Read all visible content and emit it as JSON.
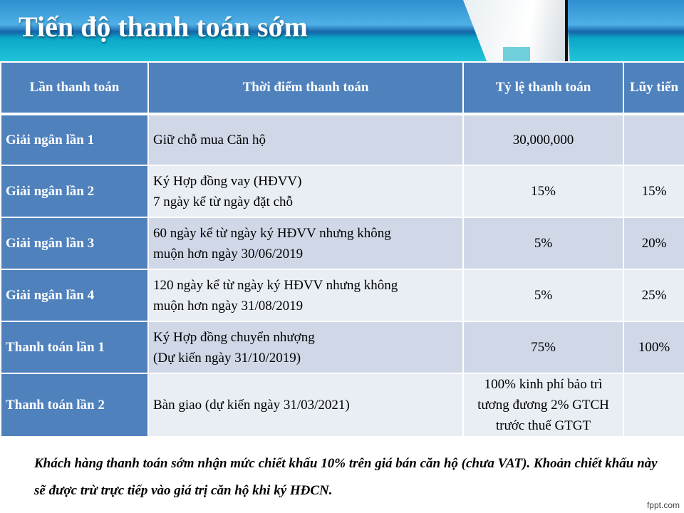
{
  "title": "Tiến độ thanh toán sớm",
  "table": {
    "headers": [
      "Lần thanh toán",
      "Thời điểm thanh toán",
      "Tỷ lệ thanh toán",
      "Lũy tiến"
    ],
    "rows": [
      {
        "label": "Giải ngân lần 1",
        "time": [
          "Giữ chỗ mua Căn hộ"
        ],
        "rate": [
          "30,000,000"
        ],
        "cumulative": ""
      },
      {
        "label": "Giải ngân lần 2",
        "time": [
          "Ký Hợp đồng vay (HĐVV)",
          "7 ngày kể từ ngày đặt chỗ"
        ],
        "rate": [
          "15%"
        ],
        "cumulative": "15%"
      },
      {
        "label": "Giải ngân lần 3",
        "time": [
          "60 ngày kể từ ngày ký HĐVV nhưng không",
          "muộn hơn ngày 30/06/2019"
        ],
        "rate": [
          "5%"
        ],
        "cumulative": "20%"
      },
      {
        "label": "Giải ngân lần 4",
        "time": [
          "120 ngày kể từ ngày ký HĐVV nhưng không",
          "muộn hơn ngày 31/08/2019"
        ],
        "rate": [
          "5%"
        ],
        "cumulative": "25%"
      },
      {
        "label": "Thanh toán lần 1",
        "time": [
          "Ký Hợp đồng chuyển nhượng",
          "(Dự kiến ngày 31/10/2019)"
        ],
        "rate": [
          "75%"
        ],
        "cumulative": "100%"
      },
      {
        "label": "Thanh toán lần 2",
        "time": [
          "Bàn giao (dự kiến ngày 31/03/2021)"
        ],
        "rate": [
          "100% kinh phí bảo trì",
          "tương đương 2% GTCH",
          "trước thuế GTGT"
        ],
        "cumulative": ""
      }
    ]
  },
  "note": "Khách hàng thanh toán sớm nhận mức chiết khấu 10% trên giá bán căn hộ (chưa VAT). Khoản chiết khấu này sẽ được trừ trực tiếp vào giá trị căn hộ khi ký HĐCN.",
  "brand": "fppt.com",
  "colors": {
    "header": "#4f81bd",
    "row_dark": "#d0d8e8",
    "row_light": "#e9edf4"
  }
}
